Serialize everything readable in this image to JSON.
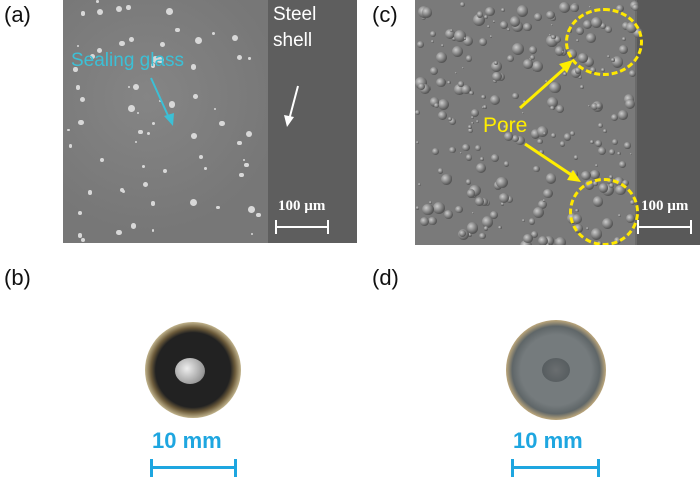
{
  "panels": {
    "a": {
      "label": "(a)",
      "material_label": "Sealing glass",
      "shell_label_line1": "Steel",
      "shell_label_line2": "shell",
      "scale_bar": "100 µm"
    },
    "b": {
      "label": "(b)",
      "scale_bar": "10 mm"
    },
    "c": {
      "label": "(c)",
      "annotation": "Pore",
      "scale_bar": "100 µm"
    },
    "d": {
      "label": "(d)",
      "scale_bar": "10 mm"
    }
  },
  "colors": {
    "cyan_annotation": "#3cc0d6",
    "yellow_annotation": "#ffee00",
    "scale_blue": "#1ea6e0"
  }
}
